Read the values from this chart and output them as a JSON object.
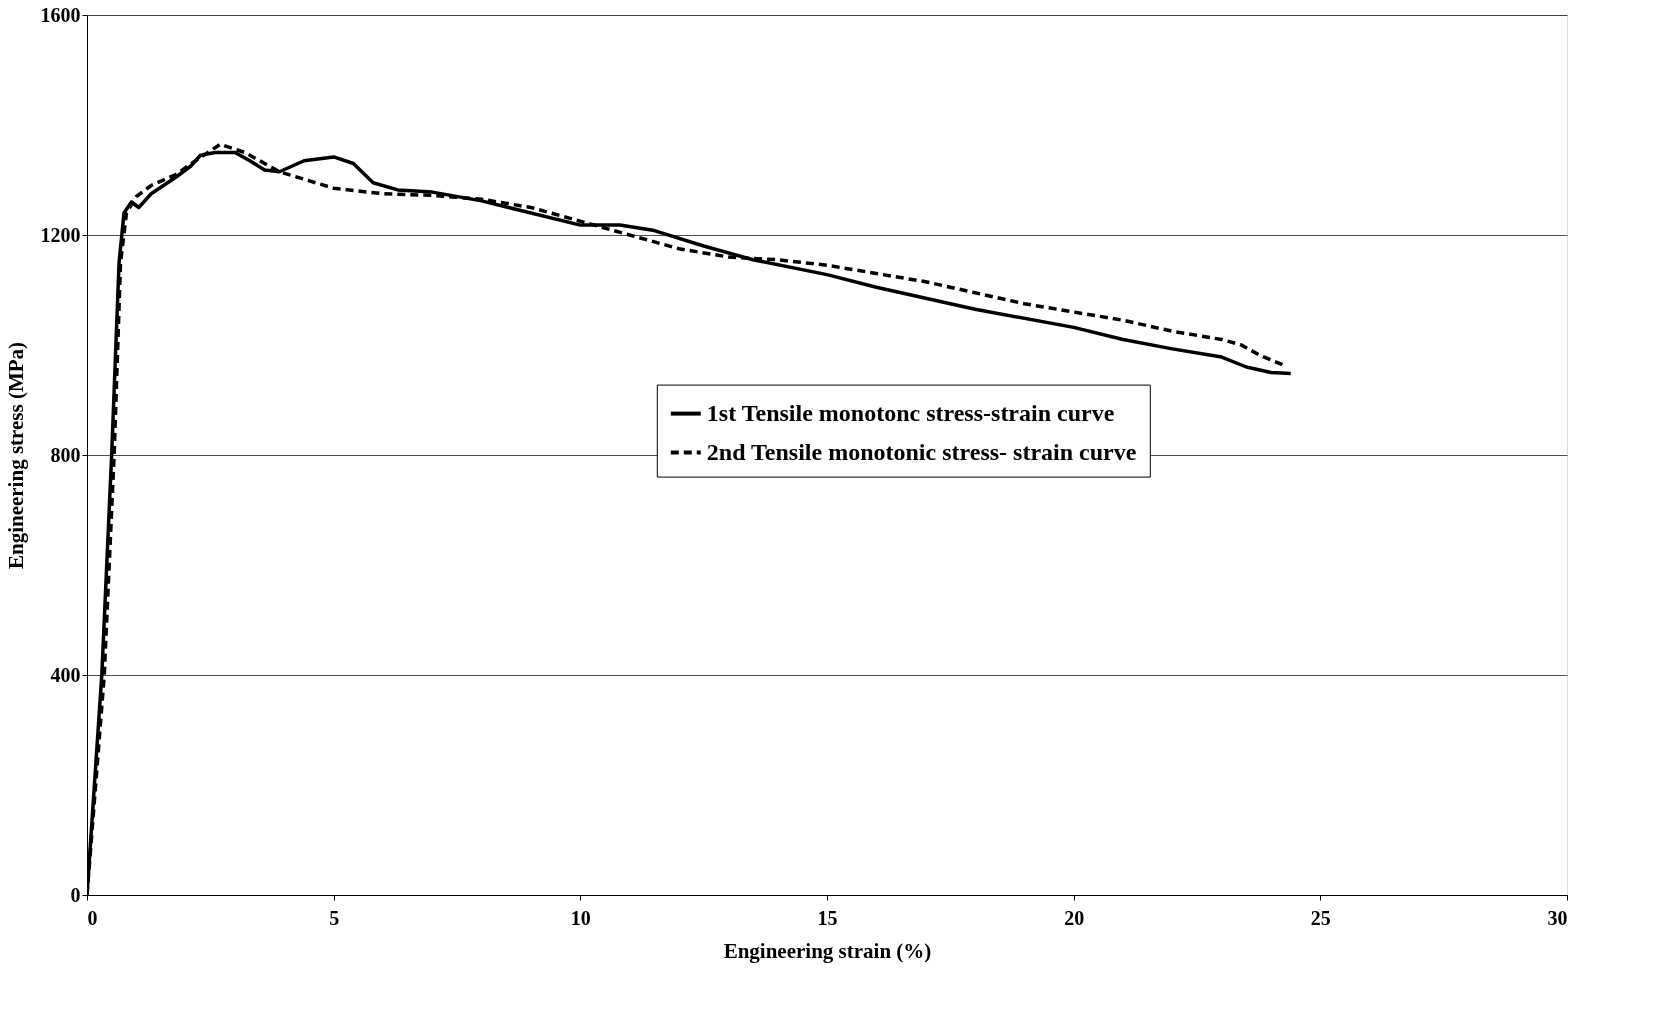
{
  "chart_data": {
    "type": "line",
    "xlabel": "Engineering strain (%)",
    "ylabel": "Engineering stress (MPa)",
    "xlim": [
      0,
      30
    ],
    "xticks": [
      0,
      5,
      10,
      15,
      20,
      25,
      30
    ],
    "ylim": [
      0,
      1600
    ],
    "yticks": [
      0,
      400,
      800,
      1200,
      1600
    ],
    "grid": "y",
    "legend": "right",
    "series": [
      {
        "name": "1st Tensile monotonc stress-strain curve",
        "color": "#000000",
        "line_style": "solid",
        "x": [
          0,
          0.3,
          0.5,
          0.65,
          0.75,
          0.9,
          1.05,
          1.3,
          1.8,
          2.1,
          2.3,
          2.6,
          3.0,
          3.3,
          3.6,
          3.9,
          4.4,
          5.0,
          5.4,
          5.8,
          6.3,
          7.0,
          8.0,
          9.0,
          10.0,
          10.8,
          11.5,
          12.5,
          13.5,
          15,
          16,
          18,
          20,
          21,
          22,
          23,
          23.5,
          24,
          24.4
        ],
        "values": [
          0,
          400,
          800,
          1150,
          1240,
          1260,
          1250,
          1275,
          1305,
          1325,
          1345,
          1350,
          1350,
          1335,
          1318,
          1315,
          1335,
          1342,
          1330,
          1295,
          1282,
          1278,
          1262,
          1240,
          1218,
          1218,
          1208,
          1180,
          1155,
          1128,
          1105,
          1065,
          1032,
          1010,
          993,
          978,
          960,
          950,
          948
        ]
      },
      {
        "name": "2nd Tensile monotonic stress- strain curve",
        "color": "#000000",
        "line_style": "dashed",
        "x": [
          0,
          0.35,
          0.55,
          0.68,
          0.8,
          1.0,
          1.3,
          1.8,
          2.2,
          2.7,
          3.2,
          3.9,
          5,
          6,
          7,
          8,
          9,
          10,
          11,
          12,
          13,
          14,
          15,
          16,
          17,
          18,
          19,
          20,
          21,
          22,
          23,
          23.4,
          23.8,
          24.3
        ],
        "values": [
          0,
          400,
          800,
          1150,
          1240,
          1270,
          1290,
          1310,
          1335,
          1365,
          1350,
          1315,
          1285,
          1275,
          1272,
          1265,
          1250,
          1225,
          1200,
          1175,
          1160,
          1155,
          1145,
          1130,
          1115,
          1095,
          1075,
          1060,
          1045,
          1025,
          1010,
          1000,
          980,
          962
        ]
      }
    ]
  }
}
